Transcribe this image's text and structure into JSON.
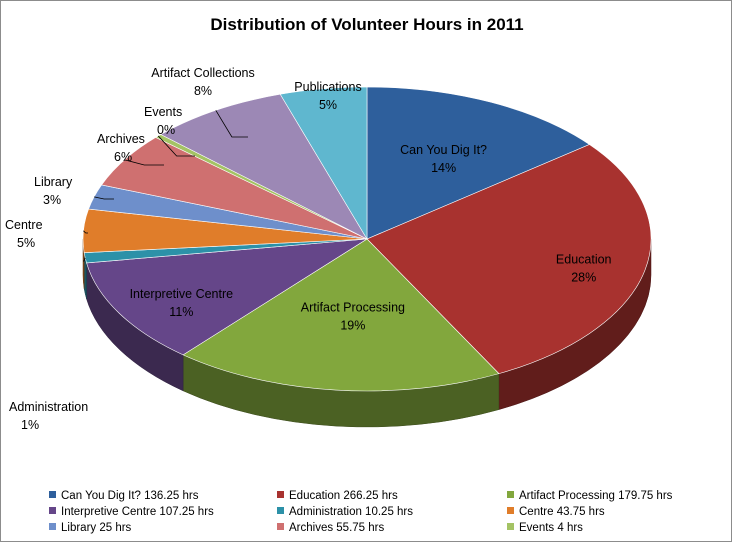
{
  "chart_data": {
    "type": "pie",
    "title": "Distribution of Volunteer Hours in 2011",
    "unit": "hrs",
    "categories": [
      "Can You Dig It?",
      "Education",
      "Artifact Processing",
      "Interpretive Centre",
      "Administration",
      "Centre",
      "Library",
      "Archives",
      "Events",
      "Artifact Collections",
      "Publications"
    ],
    "values": [
      136.25,
      266.25,
      179.75,
      107.25,
      10.25,
      43.75,
      25,
      55.75,
      4,
      76,
      47
    ],
    "percent_labels": [
      "14%",
      "28%",
      "19%",
      "11%",
      "1%",
      "5%",
      "3%",
      "6%",
      "0%",
      "8%",
      "5%"
    ],
    "legend_labels": [
      "Can You Dig It? 136.25 hrs",
      "Education 266.25 hrs",
      "Artifact Processing 179.75 hrs",
      "Interpretive Centre 107.25 hrs",
      "Administration 10.25 hrs",
      "Centre 43.75 hrs",
      "Library 25 hrs",
      "Archives 55.75 hrs",
      "Events 4 hrs"
    ],
    "colors": [
      "#2E5F9C",
      "#A8322F",
      "#82A73D",
      "#654689",
      "#2C91A8",
      "#E07D2A",
      "#6E8FCB",
      "#CF7070",
      "#A4C364",
      "#9C88B5",
      "#5FB7CF"
    ],
    "legend_position": "bottom",
    "three_d": true
  }
}
